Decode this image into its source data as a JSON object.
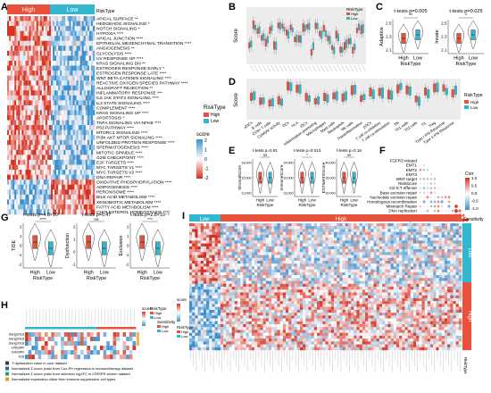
{
  "panels": {
    "A": {
      "label": "A",
      "groups": [
        "High",
        "Low"
      ],
      "legend_risk_title": "RiskType",
      "legend_risk": [
        "High",
        "Low"
      ],
      "legend_score_title": "score",
      "legend_score_ticks": [
        "2",
        "1",
        "0",
        "-1",
        "-2"
      ],
      "pathways": [
        "APICAL SURFACE **",
        "HEDGEHOG SIGNALING *",
        "NOTCH SIGNALING *",
        "HYPOXIA ****",
        "APICAL JUNCTION ****",
        "EPITHELIAL MESENCHYMAL TRANSITION ****",
        "ANGIOGENESIS **",
        "GLYCOLYSIS ****",
        "UV RESPONSE UP ****",
        "KRAS SIGNALING DN **",
        "ESTROGEN RESPONSE EARLY *",
        "ESTROGEN RESPONSE LATE ****",
        "WNT BETA CATENIN SIGNALING ****",
        "REACTIVE OXYGEN SPECIES PATHWAY ****",
        "ALLOGRAFT REJECTION **",
        "INFLAMMATORY RESPONSE ***",
        "IL6 JAK STAT3 SIGNALING ****",
        "IL2 STAT5 SIGNALING ****",
        "COMPLEMENT ****",
        "KRAS SIGNALING UP ****",
        "APOPTOSIS *",
        "TNFA SIGNALING VIA NFKB ****",
        "P53 PATHWAY ****",
        "MTORC1 SIGNALING ****",
        "PI3K AKT MTOR SIGNALING ****",
        "UNFOLDED PROTEIN RESPONSE ****",
        "SPERMATOGENESIS ****",
        "MITOTIC SPINDLE ****",
        "G2M CHECKPOINT ****",
        "E2F TARGETS ****",
        "MYC TARGETS V1 ****",
        "MYC TARGETS V2 ****",
        "DNA REPAIR ****",
        "OXIDATIVE PHOSPHORYLATION ****",
        "ADIPOGENESIS ****",
        "PEROXISOME ****",
        "BILE ACID METABOLISM ****",
        "XENOBIOTIC METABOLISM ****",
        "FATTY ACID METABOLISM ****",
        "CHOLESTEROL HOMEOSTASIS ****"
      ]
    },
    "B": {
      "label": "B",
      "ylabel": "Score",
      "legend_title": "RiskType",
      "legend": [
        "High",
        "Low"
      ]
    },
    "C": {
      "label": "C",
      "plots": [
        {
          "title": "t-tests p=0.005",
          "ylabel": "Adaptive",
          "sig": "**",
          "yticks": [
            "2.5",
            "2.3",
            "2.1"
          ]
        },
        {
          "title": "t-tests p=0.025",
          "ylabel": "Innate",
          "sig": "*",
          "yticks": [
            "2.5",
            "2.3",
            "2.1"
          ]
        }
      ],
      "xcats": [
        "High",
        "Low"
      ],
      "xlabel": "RiskType"
    },
    "D": {
      "label": "D",
      "ylabel": "Score",
      "legend_title": "RiskType",
      "legend": [
        "High",
        "Low"
      ],
      "categories": [
        "aDCs",
        "B cells",
        "CD8+ T cells",
        "Cytolytic activity",
        "DCs",
        "HLA",
        "iDCs",
        "Inflammation-promoting",
        "Macrophages",
        "Mast cells",
        "Neutrophils",
        "NK cells",
        "Parainflammation",
        "pDCs",
        "T cell co-inhibition",
        "T cell co-stimulation",
        "Tfh",
        "Th1 cells",
        "Th2 cells",
        "TIL",
        "Treg",
        "Type I IFN Response",
        "Type II IFN Response"
      ]
    },
    "E": {
      "label": "E",
      "plots": [
        {
          "title": "t-tests p=0.81",
          "ylabel": "StromalScore",
          "sig": "ns",
          "yticks": [
            "18,000",
            "15,000",
            "12,000"
          ]
        },
        {
          "title": "t-tests p=0.013",
          "ylabel": "ImmuneScore",
          "sig": "*",
          "yticks": [
            "24,000",
            "20,000",
            "16,000"
          ]
        },
        {
          "title": "t-tests p=0.16",
          "ylabel": "ESTIMATEScore",
          "sig": "ns",
          "yticks": [
            "40,000",
            "35,000",
            "30,000"
          ]
        }
      ],
      "xcats": [
        "High",
        "Low"
      ],
      "xlabel": "RiskType"
    },
    "F": {
      "label": "F",
      "rows": [
        "FGFR3 related",
        "EMT1",
        "EMT2",
        "EMT3",
        "WNT target",
        "RiskScore",
        "CD 8 T effector",
        "Base excision repair",
        "Nucleotide excision repair",
        "Homologous recombination",
        "Mismatch Repair",
        "DNA replication",
        "DDR",
        "Cell cycle"
      ],
      "legend_title": "Corr",
      "legend_ticks": [
        "1.0",
        "0.5",
        "0.0",
        "-0.5",
        "-1.0"
      ]
    },
    "G": {
      "label": "G",
      "plots": [
        {
          "title": "t-tests p=4.8×10⁻⁷",
          "ylabel": "TIDE",
          "sig": "****",
          "yticks": [
            "2",
            "1",
            "0",
            "-1",
            "-2"
          ]
        },
        {
          "title": "t-tests p=0.47",
          "ylabel": "Dysfunction",
          "sig": "ns",
          "yticks": [
            "2",
            "1",
            "0",
            "-1"
          ]
        },
        {
          "title": "t-tests p=2.8×10⁻⁵",
          "ylabel": "Exclusion",
          "sig": "***",
          "yticks": [
            "2",
            "1",
            "0",
            "-1",
            "-2"
          ]
        }
      ],
      "xcats": [
        "High",
        "Low"
      ],
      "xlabel": "RiskType"
    },
    "H": {
      "label": "H",
      "rows": [
        "Jiang2018",
        "Jiang2018",
        "Jiang2018",
        "CRISPR",
        "CRISPR",
        "ICB"
      ],
      "legend_score_title": "score",
      "legend_risk_title": "RiskType",
      "legend_risk": [
        "High",
        "Low"
      ],
      "legend_sens_title": "Sensitivity",
      "legend_sens": [
        "High",
        "Low"
      ],
      "footnotes": [
        "T dysfunction value in core dataset",
        "Normalized Z score (ratio from Cox-PH regression in immunotherapy dataset",
        "Normalized Z score (ratio from selection log2FC in CRISPR screen dataset",
        "Normalized expression value from immune-suppressive cell types"
      ]
    },
    "I": {
      "label": "I",
      "groups": [
        "Low",
        "High"
      ],
      "side_title": "Sensitivity",
      "side": [
        "Low",
        "High"
      ],
      "legend_score_title": "score",
      "legend_score_ticks": [
        "2",
        "1",
        "0",
        "-1",
        "-2"
      ],
      "legend_risk_title": "RiskType",
      "legend_risk": [
        "High",
        "Low"
      ],
      "ylabel": "RiskType"
    }
  },
  "colors": {
    "high": "#e8513b",
    "low": "#35b6cf",
    "heat_red": "#d7301f",
    "heat_blue": "#3b8fce",
    "mid": "#ffffff"
  }
}
